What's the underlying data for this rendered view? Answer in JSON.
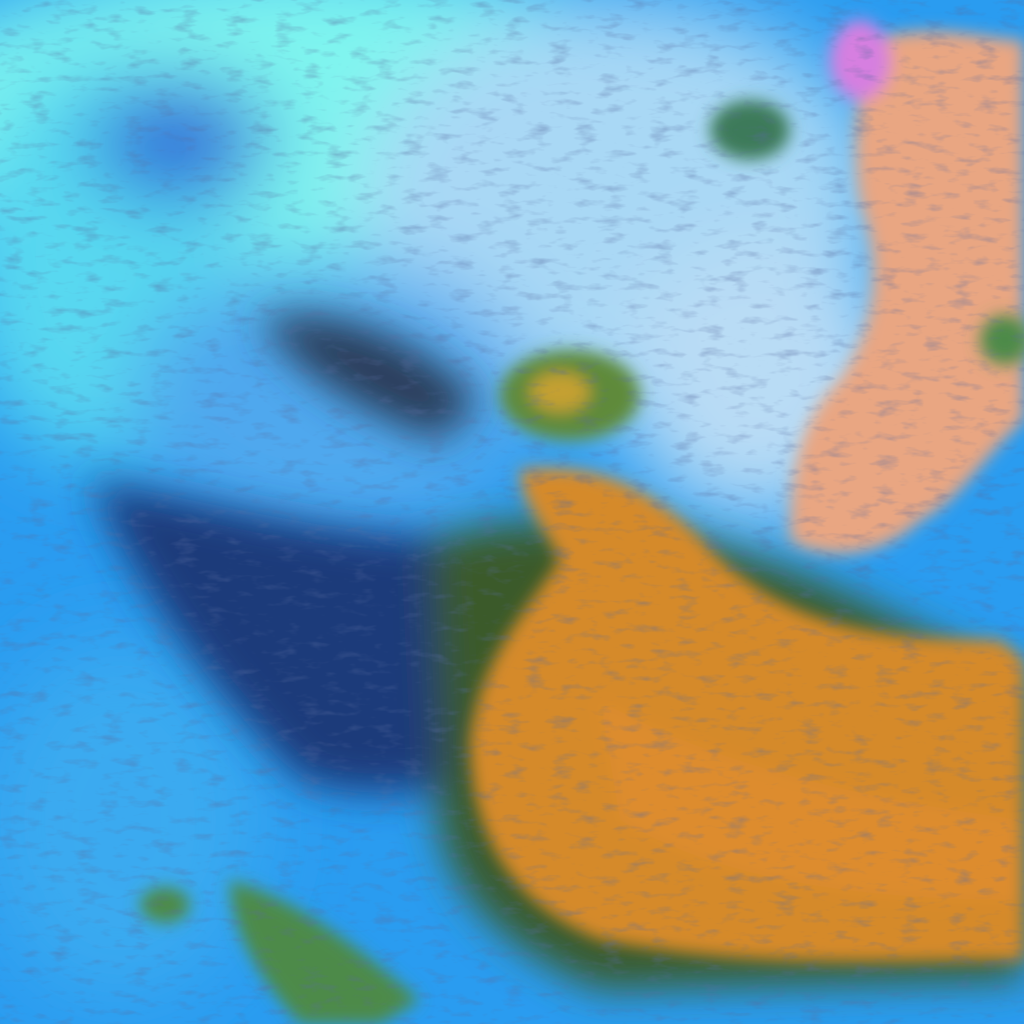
{
  "image": {
    "kind": "false-color satellite imagery",
    "colors": {
      "ocean_base": "#2a9cf0",
      "bright_cloud": "#7ff5ef",
      "pale_cloud": "#a9d8f5",
      "dark_streaks": "#1c2f6a",
      "green_land": "#4e8a4a",
      "orange_plume": "#d58a2a",
      "salmon_land": "#e9a682",
      "magenta_patch": "#d67fe0"
    }
  }
}
